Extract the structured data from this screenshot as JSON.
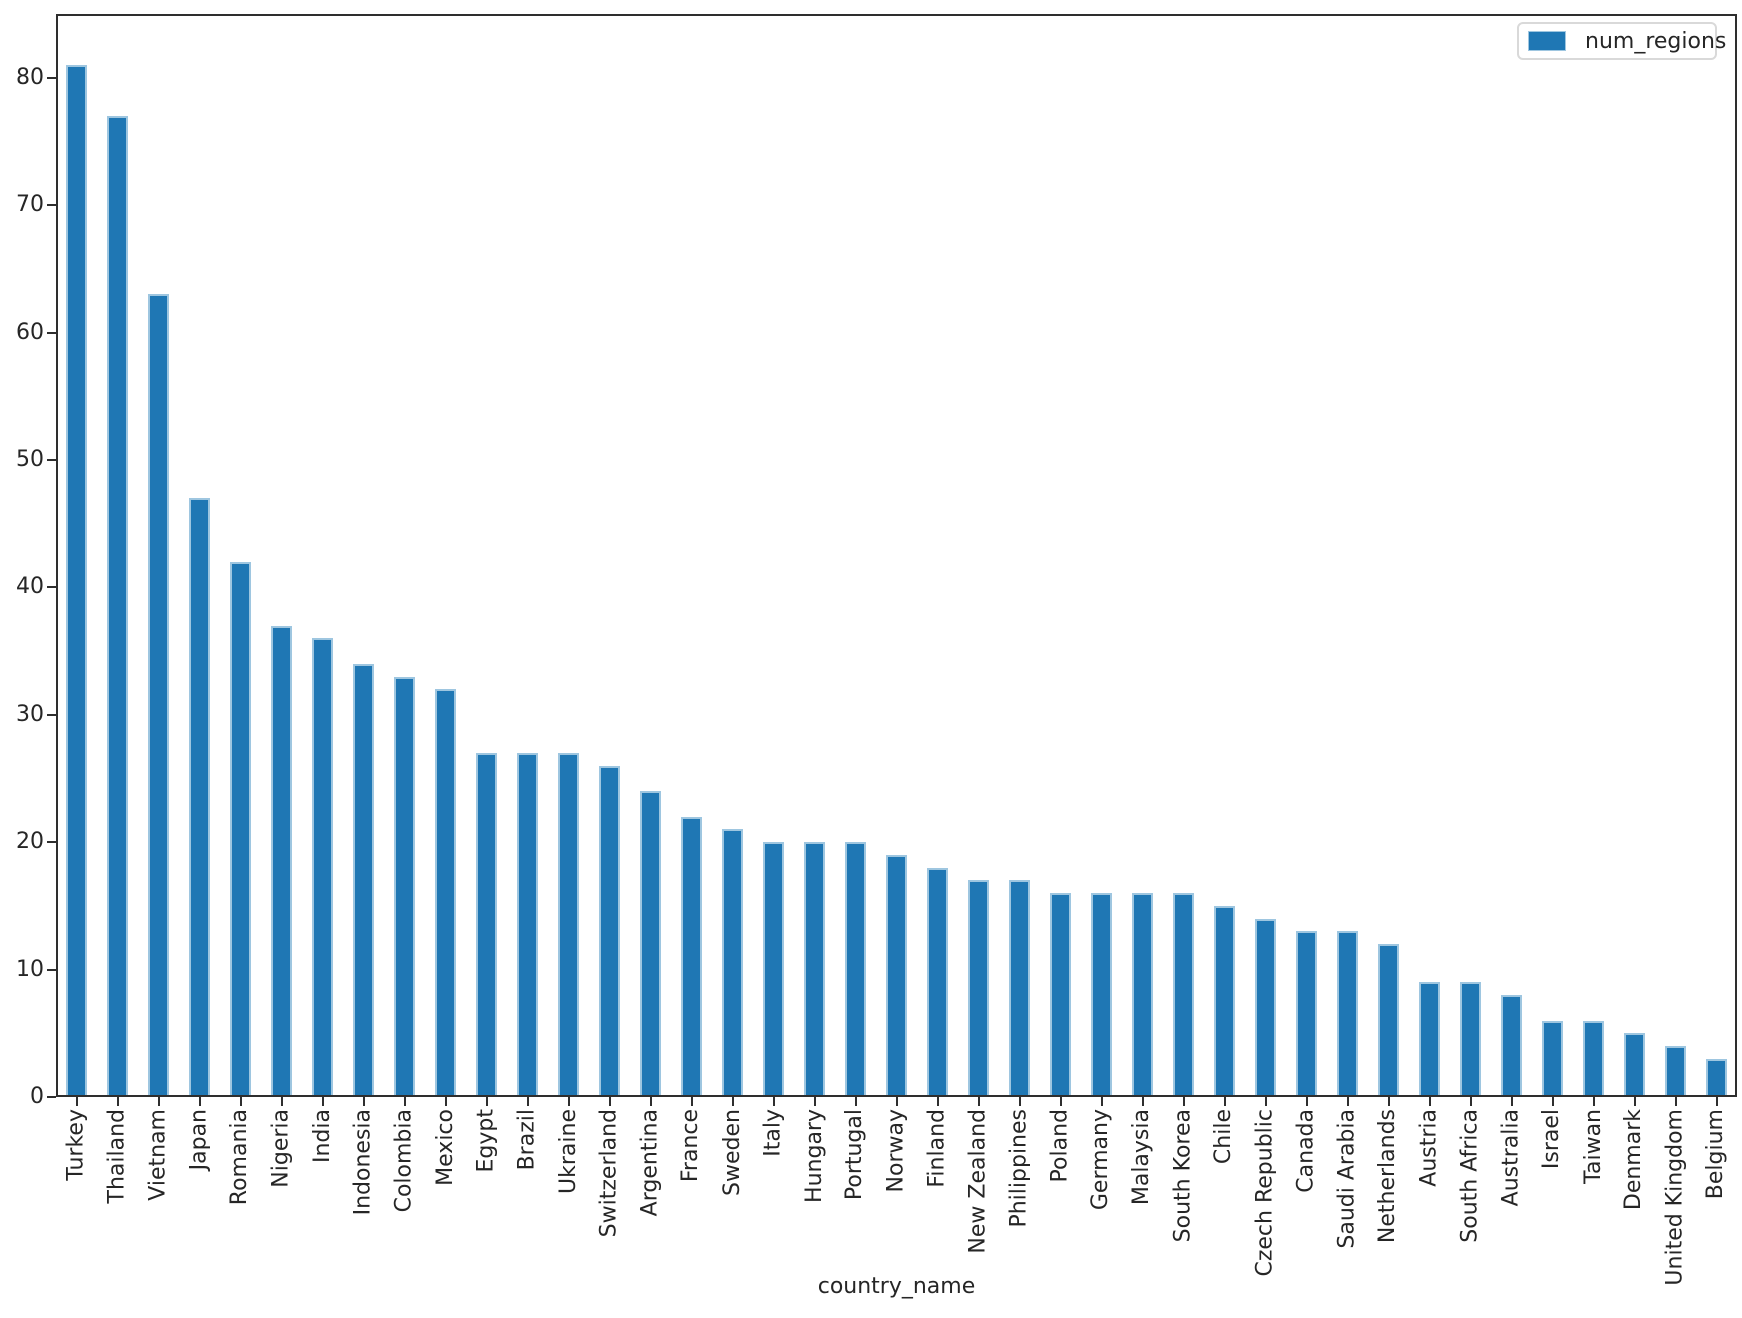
{
  "chart_data": {
    "type": "bar",
    "title": "",
    "xlabel": "country_name",
    "ylabel": "",
    "grid": false,
    "legend_position": "upper right",
    "ylim": [
      0,
      85
    ],
    "yticks": [
      0,
      10,
      20,
      30,
      40,
      50,
      60,
      70,
      80
    ],
    "bar_color": "#1f77b4",
    "bar_edge_color": "#9ec6e0",
    "spine_color": "#2e2e2e",
    "categories": [
      "Turkey",
      "Thailand",
      "Vietnam",
      "Japan",
      "Romania",
      "Nigeria",
      "India",
      "Indonesia",
      "Colombia",
      "Mexico",
      "Egypt",
      "Brazil",
      "Ukraine",
      "Switzerland",
      "Argentina",
      "France",
      "Sweden",
      "Italy",
      "Hungary",
      "Portugal",
      "Norway",
      "Finland",
      "New Zealand",
      "Philippines",
      "Poland",
      "Germany",
      "Malaysia",
      "South Korea",
      "Chile",
      "Czech Republic",
      "Canada",
      "Saudi Arabia",
      "Netherlands",
      "Austria",
      "South Africa",
      "Australia",
      "Israel",
      "Taiwan",
      "Denmark",
      "United Kingdom",
      "Belgium"
    ],
    "series": [
      {
        "name": "num_regions",
        "values": [
          81,
          77,
          63,
          47,
          42,
          37,
          36,
          34,
          33,
          32,
          27,
          27,
          27,
          26,
          24,
          22,
          21,
          20,
          20,
          20,
          19,
          18,
          17,
          17,
          16,
          16,
          16,
          16,
          15,
          14,
          13,
          13,
          12,
          9,
          9,
          8,
          6,
          6,
          5,
          4,
          3
        ]
      }
    ]
  }
}
